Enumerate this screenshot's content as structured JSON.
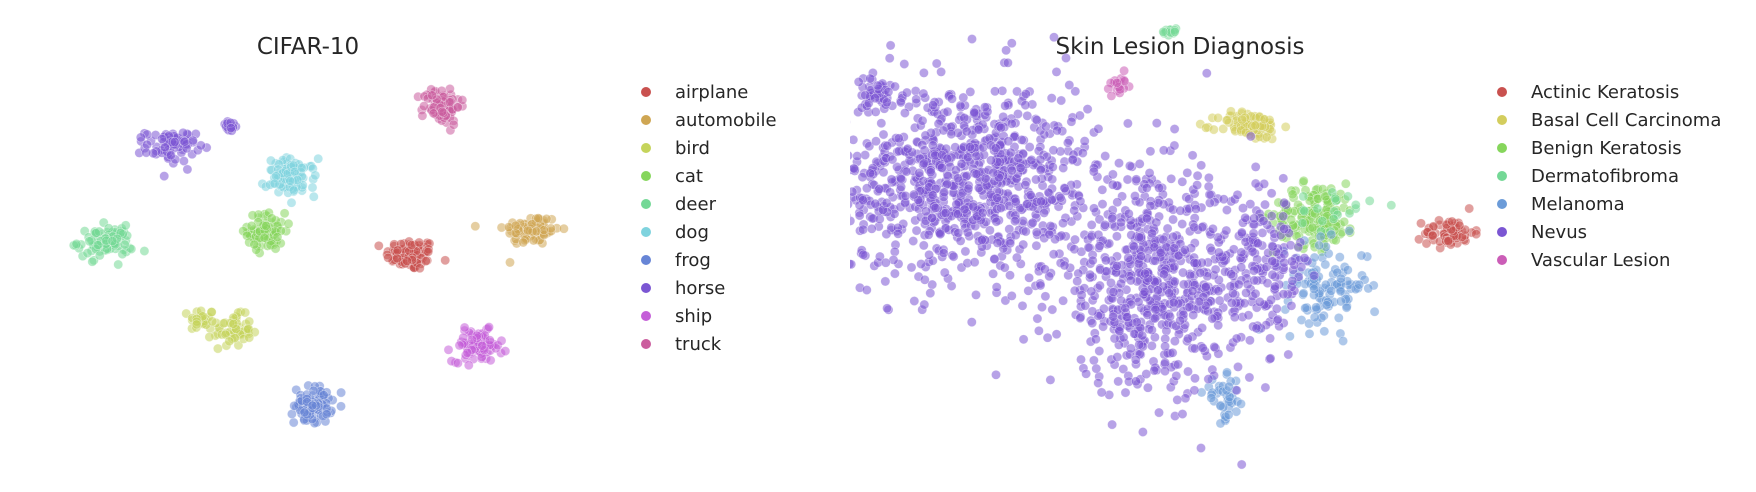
{
  "chart_data": [
    {
      "type": "scatter",
      "title": "CIFAR-10",
      "legend_position": "right",
      "grid": false,
      "axes_visible": false,
      "series": [
        {
          "name": "airplane",
          "color": "#c9514f",
          "clusters": [
            {
              "x": 65,
              "y": -3,
              "sx": 8,
              "sy": 5,
              "n": 90
            }
          ]
        },
        {
          "name": "automobile",
          "color": "#cfa653",
          "clusters": [
            {
              "x": 143,
              "y": 13,
              "sx": 9,
              "sy": 5,
              "n": 90
            }
          ]
        },
        {
          "name": "bird",
          "color": "#c5d45b",
          "clusters": [
            {
              "x": -70,
              "y": -45,
              "sx": 4,
              "sy": 4,
              "n": 25
            },
            {
              "x": -50,
              "y": -52,
              "sx": 6,
              "sy": 5,
              "n": 55
            }
          ]
        },
        {
          "name": "cat",
          "color": "#86d65c",
          "clusters": [
            {
              "x": -28,
              "y": 12,
              "sx": 6,
              "sy": 6,
              "n": 90
            }
          ]
        },
        {
          "name": "deer",
          "color": "#74d896",
          "clusters": [
            {
              "x": -132,
              "y": 5,
              "sx": 9,
              "sy": 5,
              "n": 90
            }
          ]
        },
        {
          "name": "dog",
          "color": "#7fd3de",
          "clusters": [
            {
              "x": -12,
              "y": 47,
              "sx": 8,
              "sy": 6,
              "n": 90
            }
          ]
        },
        {
          "name": "frog",
          "color": "#6785d6",
          "clusters": [
            {
              "x": 2,
              "y": -100,
              "sx": 6,
              "sy": 6,
              "n": 90
            }
          ]
        },
        {
          "name": "horse",
          "color": "#7b56d3",
          "clusters": [
            {
              "x": -90,
              "y": 67,
              "sx": 8,
              "sy": 5,
              "n": 75
            },
            {
              "x": -52,
              "y": 80,
              "sx": 3,
              "sy": 2,
              "n": 15
            }
          ]
        },
        {
          "name": "ship",
          "color": "#c45fd8",
          "clusters": [
            {
              "x": 108,
              "y": -62,
              "sx": 8,
              "sy": 5,
              "n": 90
            }
          ]
        },
        {
          "name": "truck",
          "color": "#cb5d9e",
          "clusters": [
            {
              "x": 85,
              "y": 93,
              "sx": 6,
              "sy": 6,
              "n": 90
            }
          ]
        }
      ]
    },
    {
      "type": "scatter",
      "title": "Skin Lesion Diagnosis",
      "legend_position": "right",
      "grid": false,
      "axes_visible": false,
      "series": [
        {
          "name": "Actinic Keratosis",
          "color": "#c9514f",
          "clusters": [
            {
              "x": 168,
              "y": 10,
              "sx": 7,
              "sy": 4,
              "n": 70
            }
          ]
        },
        {
          "name": "Basal Cell Carcinoma",
          "color": "#d3cd5d",
          "clusters": [
            {
              "x": 54,
              "y": 71,
              "sx": 9,
              "sy": 4,
              "n": 90
            }
          ]
        },
        {
          "name": "Benign Keratosis",
          "color": "#86d65c",
          "clusters": [
            {
              "x": 92,
              "y": 20,
              "sx": 12,
              "sy": 9,
              "n": 160
            }
          ]
        },
        {
          "name": "Dermatofibroma",
          "color": "#74d896",
          "clusters": [
            {
              "x": 8,
              "y": 125,
              "sx": 2,
              "sy": 1,
              "n": 18
            },
            {
              "x": 103,
              "y": 23,
              "sx": 10,
              "sy": 6,
              "n": 20
            }
          ]
        },
        {
          "name": "Melanoma",
          "color": "#6b9bd8",
          "clusters": [
            {
              "x": 98,
              "y": -20,
              "sx": 12,
              "sy": 12,
              "n": 120
            },
            {
              "x": 40,
              "y": -85,
              "sx": 6,
              "sy": 6,
              "n": 40
            }
          ]
        },
        {
          "name": "Nevus",
          "color": "#7b56d3",
          "clusters": [
            {
              "x": -108,
              "y": 40,
              "sx": 38,
              "sy": 28,
              "n": 950
            },
            {
              "x": 0,
              "y": -20,
              "sx": 30,
              "sy": 30,
              "n": 650
            },
            {
              "x": 60,
              "y": -10,
              "sx": 15,
              "sy": 20,
              "n": 160
            },
            {
              "x": -160,
              "y": 90,
              "sx": 5,
              "sy": 4,
              "n": 40
            }
          ]
        },
        {
          "name": "Vascular Lesion",
          "color": "#cb5db7",
          "clusters": [
            {
              "x": -20,
              "y": 95,
              "sx": 2,
              "sy": 3,
              "n": 18
            }
          ]
        }
      ]
    }
  ]
}
